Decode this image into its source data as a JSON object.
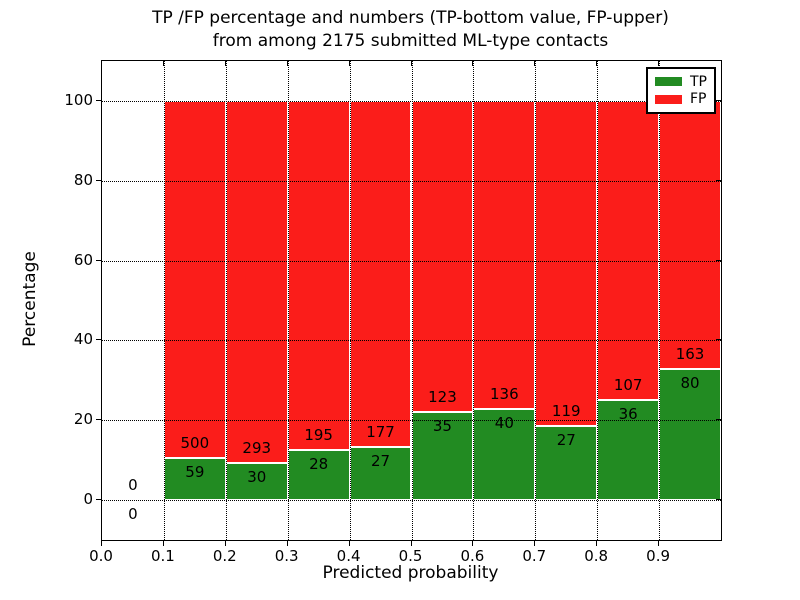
{
  "chart_data": {
    "type": "bar",
    "stacked": true,
    "title_line1": "TP /FP percentage and numbers (TP-bottom value, FP-upper)",
    "title_line2": "from among 2175 submitted ML-type contacts",
    "xlabel": "Predicted probability",
    "ylabel": "Percentage",
    "total_submitted": 2175,
    "annotation_scheme": "FP count above segment boundary, TP count below it",
    "x_bin_width": 0.1,
    "xlim": [
      0.0,
      1.0
    ],
    "ylim": [
      -10,
      110
    ],
    "grid": "dotted",
    "legend_position": "upper right",
    "colors": {
      "tp": "#228b22",
      "fp": "#fb1d1a",
      "grid": "#000000",
      "background": "#ffffff"
    },
    "legend": {
      "items": [
        {
          "label": "TP",
          "color_key": "tp"
        },
        {
          "label": "FP",
          "color_key": "fp"
        }
      ]
    },
    "x_ticks": [
      {
        "value": 0.0,
        "label": "0.0"
      },
      {
        "value": 0.1,
        "label": "0.1"
      },
      {
        "value": 0.2,
        "label": "0.2"
      },
      {
        "value": 0.3,
        "label": "0.3"
      },
      {
        "value": 0.4,
        "label": "0.4"
      },
      {
        "value": 0.5,
        "label": "0.5"
      },
      {
        "value": 0.6,
        "label": "0.6"
      },
      {
        "value": 0.7,
        "label": "0.7"
      },
      {
        "value": 0.8,
        "label": "0.8"
      },
      {
        "value": 0.9,
        "label": "0.9"
      }
    ],
    "y_ticks": [
      {
        "value": 0,
        "label": "0"
      },
      {
        "value": 20,
        "label": "20"
      },
      {
        "value": 40,
        "label": "40"
      },
      {
        "value": 60,
        "label": "60"
      },
      {
        "value": 80,
        "label": "80"
      },
      {
        "value": 100,
        "label": "100"
      }
    ],
    "bins": [
      {
        "x_start": 0.0,
        "tp": 0,
        "fp": 0
      },
      {
        "x_start": 0.1,
        "tp": 59,
        "fp": 500
      },
      {
        "x_start": 0.2,
        "tp": 30,
        "fp": 293
      },
      {
        "x_start": 0.3,
        "tp": 28,
        "fp": 195
      },
      {
        "x_start": 0.4,
        "tp": 27,
        "fp": 177
      },
      {
        "x_start": 0.5,
        "tp": 35,
        "fp": 123
      },
      {
        "x_start": 0.6,
        "tp": 40,
        "fp": 136
      },
      {
        "x_start": 0.7,
        "tp": 27,
        "fp": 119
      },
      {
        "x_start": 0.8,
        "tp": 36,
        "fp": 107
      },
      {
        "x_start": 0.9,
        "tp": 80,
        "fp": 163
      }
    ]
  }
}
